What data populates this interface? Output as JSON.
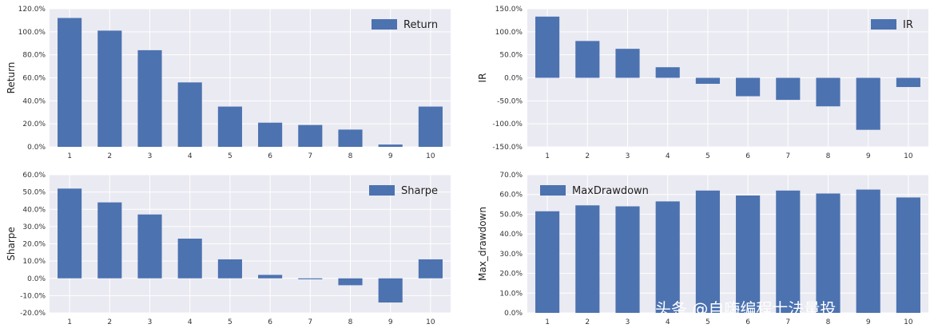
{
  "chart_data": [
    {
      "type": "bar",
      "categories": [
        "1",
        "2",
        "3",
        "4",
        "5",
        "6",
        "7",
        "8",
        "9",
        "10"
      ],
      "series": [
        {
          "name": "Return",
          "values": [
            1.12,
            1.01,
            0.84,
            0.56,
            0.35,
            0.21,
            0.19,
            0.15,
            0.02,
            0.35
          ]
        }
      ],
      "ylabel": "Return",
      "ylim": [
        0,
        1.2
      ],
      "yticks": [
        0,
        0.2,
        0.4,
        0.6,
        0.8,
        1.0,
        1.2
      ],
      "ytick_labels": [
        "0.0%",
        "20.0%",
        "40.0%",
        "60.0%",
        "80.0%",
        "100.0%",
        "120.0%"
      ],
      "legend": "top-right",
      "grid": true
    },
    {
      "type": "bar",
      "categories": [
        "1",
        "2",
        "3",
        "4",
        "5",
        "6",
        "7",
        "8",
        "9",
        "10"
      ],
      "series": [
        {
          "name": "IR",
          "values": [
            1.33,
            0.8,
            0.63,
            0.23,
            -0.13,
            -0.4,
            -0.48,
            -0.62,
            -1.13,
            -0.2
          ]
        }
      ],
      "ylabel": "IR",
      "ylim": [
        -1.5,
        1.5
      ],
      "yticks": [
        -1.5,
        -1.0,
        -0.5,
        0,
        0.5,
        1.0,
        1.5
      ],
      "ytick_labels": [
        "-150.0%",
        "-100.0%",
        "-50.0%",
        "0.0%",
        "50.0%",
        "100.0%",
        "150.0%"
      ],
      "legend": "top-right",
      "grid": true
    },
    {
      "type": "bar",
      "categories": [
        "1",
        "2",
        "3",
        "4",
        "5",
        "6",
        "7",
        "8",
        "9",
        "10"
      ],
      "series": [
        {
          "name": "Sharpe",
          "values": [
            0.52,
            0.44,
            0.37,
            0.23,
            0.11,
            0.02,
            -0.005,
            -0.04,
            -0.14,
            0.11
          ]
        }
      ],
      "ylabel": "Sharpe",
      "ylim": [
        -0.2,
        0.6
      ],
      "yticks": [
        -0.2,
        -0.1,
        0,
        0.1,
        0.2,
        0.3,
        0.4,
        0.5,
        0.6
      ],
      "ytick_labels": [
        "-20.0%",
        "-10.0%",
        "0.0%",
        "10.0%",
        "20.0%",
        "30.0%",
        "40.0%",
        "50.0%",
        "60.0%"
      ],
      "legend": "top-right",
      "grid": true
    },
    {
      "type": "bar",
      "categories": [
        "1",
        "2",
        "3",
        "4",
        "5",
        "6",
        "7",
        "8",
        "9",
        "10"
      ],
      "series": [
        {
          "name": "MaxDrawdown",
          "values": [
            0.515,
            0.545,
            0.54,
            0.565,
            0.62,
            0.595,
            0.62,
            0.605,
            0.625,
            0.585
          ]
        }
      ],
      "ylabel": "Max_drawdown",
      "ylim": [
        0,
        0.7
      ],
      "yticks": [
        0,
        0.1,
        0.2,
        0.3,
        0.4,
        0.5,
        0.6,
        0.7
      ],
      "ytick_labels": [
        "0.0%",
        "10.0%",
        "20.0%",
        "30.0%",
        "40.0%",
        "50.0%",
        "60.0%",
        "70.0%"
      ],
      "legend": "top-left",
      "grid": true
    }
  ],
  "watermark": "头条 @自嗨编程士法量投",
  "colors": {
    "bar": "#4c72b0",
    "plot_bg": "#eaeaf2",
    "grid": "#ffffff"
  }
}
